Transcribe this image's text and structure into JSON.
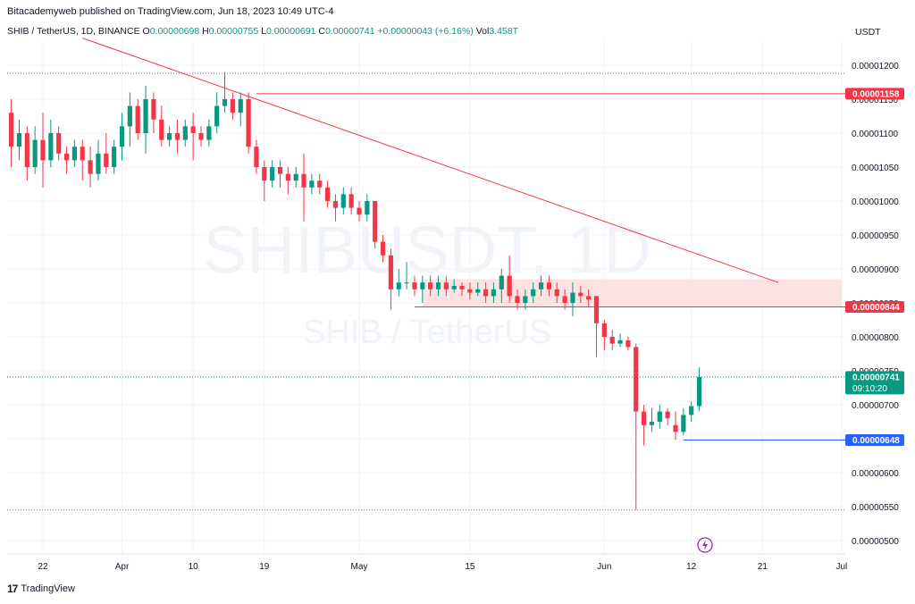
{
  "header": {
    "publisher": "Bitacademyweb published on TradingView.com, Jun 18, 2023 10:49 UTC-4"
  },
  "ohlc": {
    "symbol": "SHIB / TetherUS, 1D, BINANCE",
    "open_label": "O",
    "open": "0.00000698",
    "high_label": "H",
    "high": "0.00000755",
    "low_label": "L",
    "low": "0.00000691",
    "close_label": "C",
    "close": "0.00000741",
    "change": "+0.00000043 (+6.16%)",
    "vol_label": "Vol",
    "vol": "3.458T"
  },
  "currency": "USDT",
  "watermark": {
    "line1": "SHIBUSDT, 1D",
    "line2": "SHIB / TetherUS"
  },
  "footer": {
    "brand": "TradingView"
  },
  "colors": {
    "up": "#089981",
    "down": "#f23645",
    "resistance": "#f23645",
    "support": "#2962ff",
    "zone": "#fde2e4",
    "current": "#089981"
  },
  "chart_data": {
    "type": "candlestick",
    "ylim": [
      4.8e-06,
      1.23e-05
    ],
    "y_ticks": [
      "0.00001200",
      "0.00001150",
      "0.00001100",
      "0.00001050",
      "0.00001000",
      "0.00000950",
      "0.00000900",
      "0.00000850",
      "0.00000800",
      "0.00000750",
      "0.00000700",
      "0.00000650",
      "0.00000600",
      "0.00000550",
      "0.00000500"
    ],
    "x_ticks": [
      {
        "label": "22",
        "day": 0
      },
      {
        "label": "Apr",
        "day": 10
      },
      {
        "label": "10",
        "day": 19
      },
      {
        "label": "19",
        "day": 28
      },
      {
        "label": "May",
        "day": 40
      },
      {
        "label": "15",
        "day": 54
      },
      {
        "label": "Jun",
        "day": 71
      },
      {
        "label": "12",
        "day": 82
      },
      {
        "label": "21",
        "day": 91
      },
      {
        "label": "Jul",
        "day": 101
      }
    ],
    "candles": [
      [
        1.13e-05,
        1.08e-05,
        1.15e-05,
        1.05e-05
      ],
      [
        1.08e-05,
        1.1e-05,
        1.12e-05,
        1.06e-05
      ],
      [
        1.1e-05,
        1.05e-05,
        1.11e-05,
        1.03e-05
      ],
      [
        1.05e-05,
        1.09e-05,
        1.11e-05,
        1.04e-05
      ],
      [
        1.09e-05,
        1.06e-05,
        1.13e-05,
        1.02e-05
      ],
      [
        1.06e-05,
        1.1e-05,
        1.12e-05,
        1.05e-05
      ],
      [
        1.1e-05,
        1.07e-05,
        1.11e-05,
        1.06e-05
      ],
      [
        1.07e-05,
        1.06e-05,
        1.08e-05,
        1.04e-05
      ],
      [
        1.06e-05,
        1.08e-05,
        1.09e-05,
        1.05e-05
      ],
      [
        1.08e-05,
        1.06e-05,
        1.09e-05,
        1.03e-05
      ],
      [
        1.06e-05,
        1.04e-05,
        1.08e-05,
        1.02e-05
      ],
      [
        1.04e-05,
        1.07e-05,
        1.09e-05,
        1.03e-05
      ],
      [
        1.07e-05,
        1.05e-05,
        1.1e-05,
        1.04e-05
      ],
      [
        1.05e-05,
        1.08e-05,
        1.09e-05,
        1.04e-05
      ],
      [
        1.08e-05,
        1.11e-05,
        1.13e-05,
        1.06e-05
      ],
      [
        1.11e-05,
        1.14e-05,
        1.16e-05,
        1.08e-05
      ],
      [
        1.14e-05,
        1.1e-05,
        1.15e-05,
        1.09e-05
      ],
      [
        1.1e-05,
        1.15e-05,
        1.17e-05,
        1.07e-05
      ],
      [
        1.15e-05,
        1.12e-05,
        1.16e-05,
        1.1e-05
      ],
      [
        1.12e-05,
        1.09e-05,
        1.14e-05,
        1.08e-05
      ],
      [
        1.09e-05,
        1.1e-05,
        1.11e-05,
        1.08e-05
      ],
      [
        1.1e-05,
        1.09e-05,
        1.12e-05,
        1.07e-05
      ],
      [
        1.09e-05,
        1.11e-05,
        1.12e-05,
        1.08e-05
      ],
      [
        1.11e-05,
        1.1e-05,
        1.13e-05,
        1.06e-05
      ],
      [
        1.1e-05,
        1.09e-05,
        1.11e-05,
        1.08e-05
      ],
      [
        1.09e-05,
        1.11e-05,
        1.12e-05,
        1.08e-05
      ],
      [
        1.11e-05,
        1.14e-05,
        1.16e-05,
        1.1e-05
      ],
      [
        1.14e-05,
        1.15e-05,
        1.19e-05,
        1.13e-05
      ],
      [
        1.15e-05,
        1.13e-05,
        1.16e-05,
        1.12e-05
      ],
      [
        1.13e-05,
        1.15e-05,
        1.16e-05,
        1.11e-05
      ],
      [
        1.15e-05,
        1.08e-05,
        1.16e-05,
        1.07e-05
      ],
      [
        1.08e-05,
        1.05e-05,
        1.09e-05,
        1.04e-05
      ],
      [
        1.05e-05,
        1.03e-05,
        1.06e-05,
        1e-05
      ],
      [
        1.03e-05,
        1.05e-05,
        1.06e-05,
        1.02e-05
      ],
      [
        1.05e-05,
        1.04e-05,
        1.06e-05,
        1.02e-05
      ],
      [
        1.04e-05,
        1.03e-05,
        1.05e-05,
        1.01e-05
      ],
      [
        1.03e-05,
        1.04e-05,
        1.05e-05,
        1.02e-05
      ],
      [
        1.04e-05,
        1.02e-05,
        1.07e-05,
        9.7e-06
      ],
      [
        1.02e-05,
        1.03e-05,
        1.04e-05,
        1.01e-05
      ],
      [
        1.03e-05,
        1.02e-05,
        1.04e-05,
        1.01e-05
      ],
      [
        1.02e-05,
        1e-05,
        1.03e-05,
        9.9e-06
      ],
      [
        1e-05,
        9.9e-06,
        1.01e-05,
        9.7e-06
      ],
      [
        9.9e-06,
        1.01e-05,
        1.02e-05,
        9.8e-06
      ],
      [
        1.01e-05,
        9.9e-06,
        1.02e-05,
        9.8e-06
      ],
      [
        9.9e-06,
        9.8e-06,
        1e-05,
        9.7e-06
      ],
      [
        9.8e-06,
        1e-05,
        1.01e-05,
        9.7e-06
      ],
      [
        1e-05,
        9.4e-06,
        1e-05,
        9.3e-06
      ],
      [
        9.4e-06,
        9.2e-06,
        9.5e-06,
        9.1e-06
      ],
      [
        9.2e-06,
        8.7e-06,
        9.3e-06,
        8.4e-06
      ],
      [
        8.7e-06,
        8.8e-06,
        9e-06,
        8.6e-06
      ],
      [
        8.8e-06,
        8.8e-06,
        9.1e-06,
        8.7e-06
      ],
      [
        8.8e-06,
        8.7e-06,
        8.9e-06,
        8.6e-06
      ],
      [
        8.7e-06,
        8.8e-06,
        8.9e-06,
        8.5e-06
      ],
      [
        8.8e-06,
        8.7e-06,
        8.9e-06,
        8.6e-06
      ],
      [
        8.7e-06,
        8.8e-06,
        8.9e-06,
        8.6e-06
      ],
      [
        8.8e-06,
        8.7e-06,
        8.9e-06,
        8.6e-06
      ],
      [
        8.7e-06,
        8.75e-06,
        8.85e-06,
        8.65e-06
      ],
      [
        8.75e-06,
        8.7e-06,
        8.8e-06,
        8.6e-06
      ],
      [
        8.7e-06,
        8.65e-06,
        8.8e-06,
        8.55e-06
      ],
      [
        8.65e-06,
        8.7e-06,
        8.8e-06,
        8.6e-06
      ],
      [
        8.7e-06,
        8.6e-06,
        8.8e-06,
        8.5e-06
      ],
      [
        8.6e-06,
        8.7e-06,
        8.8e-06,
        8.5e-06
      ],
      [
        8.7e-06,
        8.9e-06,
        9e-06,
        8.5e-06
      ],
      [
        8.9e-06,
        8.6e-06,
        9.2e-06,
        8.5e-06
      ],
      [
        8.6e-06,
        8.5e-06,
        8.7e-06,
        8.4e-06
      ],
      [
        8.5e-06,
        8.6e-06,
        8.7e-06,
        8.4e-06
      ],
      [
        8.6e-06,
        8.7e-06,
        8.8e-06,
        8.5e-06
      ],
      [
        8.7e-06,
        8.8e-06,
        8.9e-06,
        8.6e-06
      ],
      [
        8.8e-06,
        8.7e-06,
        8.9e-06,
        8.6e-06
      ],
      [
        8.7e-06,
        8.6e-06,
        8.8e-06,
        8.5e-06
      ],
      [
        8.6e-06,
        8.5e-06,
        8.7e-06,
        8.4e-06
      ],
      [
        8.5e-06,
        8.65e-06,
        8.8e-06,
        8.3e-06
      ],
      [
        8.65e-06,
        8.6e-06,
        8.75e-06,
        8.5e-06
      ],
      [
        8.6e-06,
        8.55e-06,
        8.7e-06,
        8.45e-06
      ],
      [
        8.6e-06,
        8.2e-06,
        8.6e-06,
        7.7e-06
      ],
      [
        8.2e-06,
        8e-06,
        8.25e-06,
        7.8e-06
      ],
      [
        8e-06,
        7.9e-06,
        8.1e-06,
        7.8e-06
      ],
      [
        7.9e-06,
        7.95e-06,
        8.05e-06,
        7.85e-06
      ],
      [
        7.95e-06,
        7.85e-06,
        8e-06,
        7.8e-06
      ],
      [
        7.85e-06,
        6.9e-06,
        7.9e-06,
        5.45e-06
      ],
      [
        6.9e-06,
        6.7e-06,
        7e-06,
        6.4e-06
      ],
      [
        6.7e-06,
        6.75e-06,
        6.95e-06,
        6.6e-06
      ],
      [
        6.75e-06,
        6.9e-06,
        7e-06,
        6.65e-06
      ],
      [
        6.9e-06,
        6.8e-06,
        6.95e-06,
        6.7e-06
      ],
      [
        6.7e-06,
        6.6e-06,
        6.9e-06,
        6.48e-06
      ],
      [
        6.6e-06,
        6.85e-06,
        6.95e-06,
        6.55e-06
      ],
      [
        6.85e-06,
        6.98e-06,
        7.05e-06,
        6.75e-06
      ],
      [
        6.98e-06,
        7.41e-06,
        7.55e-06,
        6.91e-06
      ]
    ],
    "resistance_line": {
      "value": 1.158e-05,
      "label": "0.00001158",
      "from_day": 27
    },
    "support_line_1": {
      "value": 8.44e-06,
      "label": "0.00000844",
      "from_day": 47
    },
    "support_line_2": {
      "value": 6.48e-06,
      "label": "0.00000648",
      "from_day": 81
    },
    "zone": {
      "from_day": 48,
      "to_day": 101,
      "top": 8.85e-06,
      "bottom": 8.44e-06
    },
    "trendline": {
      "start_day": 5,
      "start_value": 1.24e-05,
      "end_day": 93,
      "end_value": 8.8e-06
    },
    "high_marker": 1.188e-05,
    "low_marker": 5.45e-06,
    "current_price": {
      "value": 7.41e-06,
      "label": "0.00000741",
      "countdown": "09:10:20"
    }
  }
}
